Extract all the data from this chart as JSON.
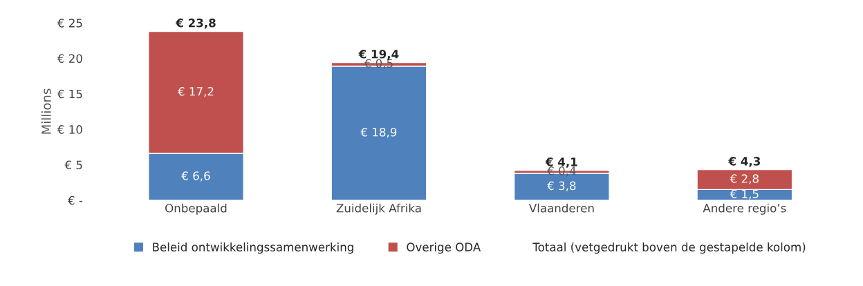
{
  "chart_data": {
    "type": "bar",
    "stacked": true,
    "ylabel": "Millions",
    "categories": [
      "Onbepaald",
      "Zuidelijk Afrika",
      "Vlaanderen",
      "Andere regio’s"
    ],
    "series": [
      {
        "name": "Beleid ontwikkelingssamenwerking",
        "color": "#4f81bd",
        "values": [
          6.6,
          18.9,
          3.8,
          1.5
        ],
        "value_labels": [
          "€ 6,6",
          "€ 18,9",
          "€ 3,8",
          "€ 1,5"
        ]
      },
      {
        "name": "Overige ODA",
        "color": "#c0504d",
        "values": [
          17.2,
          0.5,
          0.4,
          2.8
        ],
        "value_labels": [
          "€ 17,2",
          "€ 0,5",
          "€ 0,4",
          "€ 2,8"
        ]
      }
    ],
    "totals": [
      "€ 23,8",
      "€ 19,4",
      "€ 4,1",
      "€ 4,3"
    ],
    "ylim": [
      0,
      25
    ],
    "yticks": [
      {
        "value": 0,
        "label": "€ -"
      },
      {
        "value": 5,
        "label": "€ 5"
      },
      {
        "value": 10,
        "label": "€ 10"
      },
      {
        "value": 15,
        "label": "€ 15"
      },
      {
        "value": 20,
        "label": "€ 20"
      },
      {
        "value": 25,
        "label": "€ 25"
      }
    ],
    "grid": false,
    "legend": "bottom",
    "annotations": [
      "Totaal (vetgedrukt boven de gestapelde kolom)"
    ]
  }
}
